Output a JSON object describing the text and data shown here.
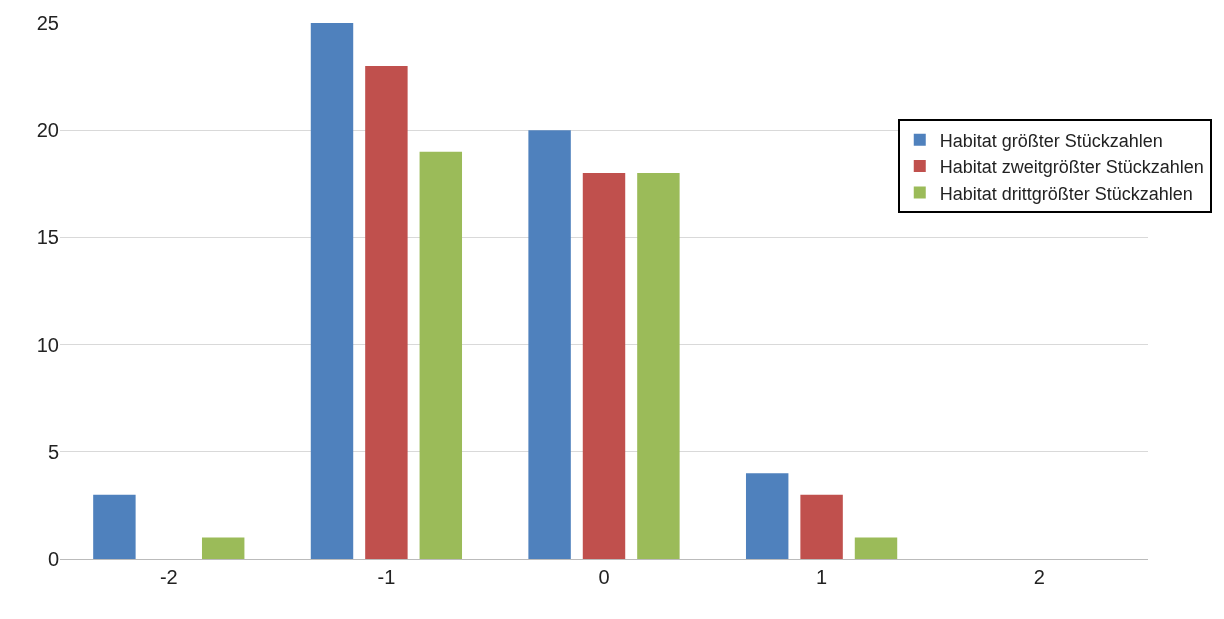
{
  "chart_data": {
    "type": "bar",
    "categories": [
      "-2",
      "-1",
      "0",
      "1",
      "2"
    ],
    "series": [
      {
        "name": "Habitat größter Stückzahlen",
        "color": "#4f81bd",
        "values": [
          3,
          25,
          20,
          4,
          0
        ]
      },
      {
        "name": "Habitat zweitgrößter Stückzahlen",
        "color": "#c0504d",
        "values": [
          0,
          23,
          18,
          3,
          0
        ]
      },
      {
        "name": "Habitat drittgrößter Stückzahlen",
        "color": "#9bbb59",
        "values": [
          1,
          19,
          18,
          1,
          0
        ]
      }
    ],
    "ylim": [
      0,
      25
    ],
    "yticks": [
      0,
      5,
      10,
      15,
      20,
      25
    ],
    "grid": "y",
    "legend": "right"
  }
}
